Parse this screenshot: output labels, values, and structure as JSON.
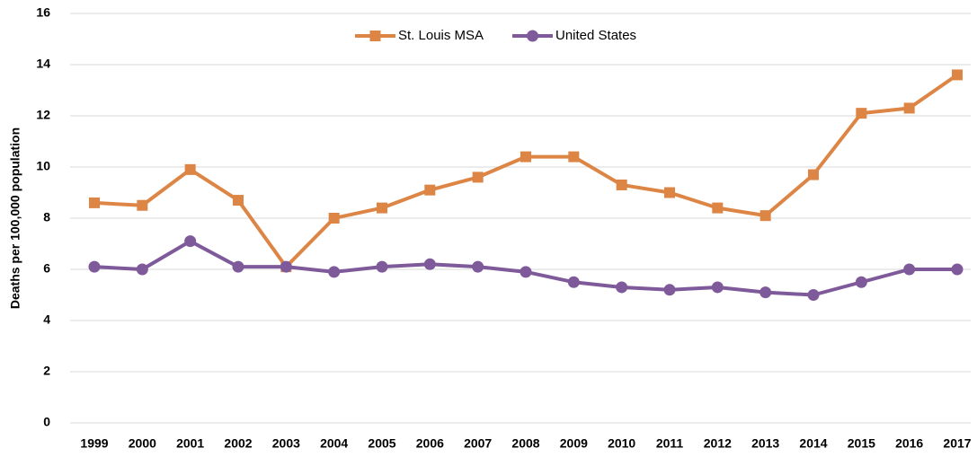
{
  "chart_data": {
    "type": "line",
    "y_label": "Deaths per 100,000 population",
    "categories": [
      "1999",
      "2000",
      "2001",
      "2002",
      "2003",
      "2004",
      "2005",
      "2006",
      "2007",
      "2008",
      "2009",
      "2010",
      "2011",
      "2012",
      "2013",
      "2014",
      "2015",
      "2016",
      "2017"
    ],
    "series": [
      {
        "name": "St. Louis MSA",
        "color": "#dd8545",
        "marker": "square",
        "values": [
          8.6,
          8.5,
          9.9,
          8.7,
          6.1,
          8.0,
          8.4,
          9.1,
          9.6,
          10.4,
          10.4,
          9.3,
          9.0,
          8.4,
          8.1,
          9.7,
          12.1,
          12.3,
          13.6
        ]
      },
      {
        "name": "United States",
        "color": "#7f5a9a",
        "marker": "circle",
        "values": [
          6.1,
          6.0,
          7.1,
          6.1,
          6.1,
          5.9,
          6.1,
          6.2,
          6.1,
          5.9,
          5.5,
          5.3,
          5.2,
          5.3,
          5.1,
          5.0,
          5.5,
          6.0,
          6.0
        ]
      }
    ],
    "ylim": [
      0,
      16
    ],
    "yticks": [
      0,
      2,
      4,
      6,
      8,
      10,
      12,
      14,
      16
    ],
    "grid": true,
    "legend": "top"
  }
}
